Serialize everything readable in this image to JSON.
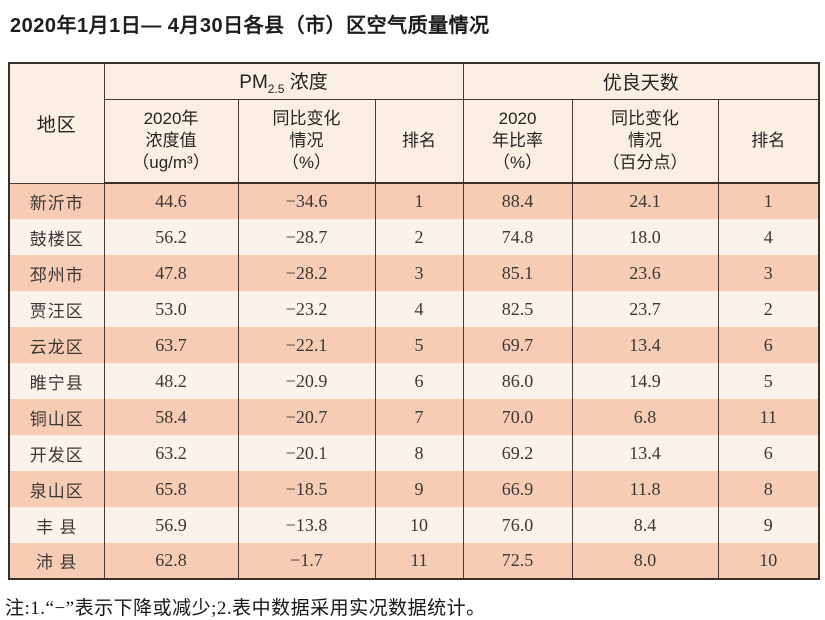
{
  "page": {
    "title": "2020年1月1日— 4月30日各县（市）区空气质量情况",
    "footnote": "注:1.“−”表示下降或减少;2.表中数据采用实况数据统计。"
  },
  "colors": {
    "row_salmon": "#f7ccb4",
    "row_light": "#fbf2ec",
    "header_bg": "#fbeee3",
    "border": "#3c2f28"
  },
  "table": {
    "region_header": "地区",
    "pm_group": {
      "main": "PM",
      "sub": "2.5",
      "rest": " 浓度"
    },
    "good_group": "优良天数",
    "subheaders": [
      "2020年\n浓度值\n（ug/m³）",
      "同比变化\n情况\n（%）",
      "排名",
      "2020\n年比率\n（%）",
      "同比变化\n情况\n（百分点）",
      "排名"
    ],
    "rows": [
      [
        "新沂市",
        "44.6",
        "−34.6",
        "1",
        "88.4",
        "24.1",
        "1"
      ],
      [
        "鼓楼区",
        "56.2",
        "−28.7",
        "2",
        "74.8",
        "18.0",
        "4"
      ],
      [
        "邳州市",
        "47.8",
        "−28.2",
        "3",
        "85.1",
        "23.6",
        "3"
      ],
      [
        "贾汪区",
        "53.0",
        "−23.2",
        "4",
        "82.5",
        "23.7",
        "2"
      ],
      [
        "云龙区",
        "63.7",
        "−22.1",
        "5",
        "69.7",
        "13.4",
        "6"
      ],
      [
        "睢宁县",
        "48.2",
        "−20.9",
        "6",
        "86.0",
        "14.9",
        "5"
      ],
      [
        "铜山区",
        "58.4",
        "−20.7",
        "7",
        "70.0",
        "6.8",
        "11"
      ],
      [
        "开发区",
        "63.2",
        "−20.1",
        "8",
        "69.2",
        "13.4",
        "6"
      ],
      [
        "泉山区",
        "65.8",
        "−18.5",
        "9",
        "66.9",
        "11.8",
        "8"
      ],
      [
        "丰 县",
        "56.9",
        "−13.8",
        "10",
        "76.0",
        "8.4",
        "9"
      ],
      [
        "沛 县",
        "62.8",
        "−1.7",
        "11",
        "72.5",
        "8.0",
        "10"
      ]
    ]
  }
}
